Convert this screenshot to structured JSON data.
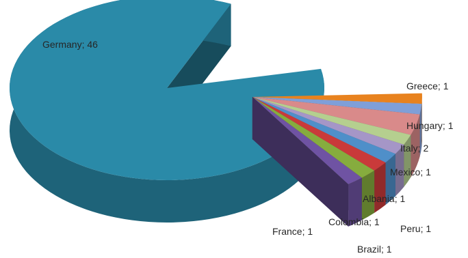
{
  "chart_data": {
    "type": "pie",
    "style": "3d-exploded",
    "title": "",
    "legend": "none",
    "data_label_format": "{name}; {value}",
    "slices": [
      {
        "name": "Germany",
        "value": 46,
        "color": "#2a8aa8"
      },
      {
        "name": "Greece",
        "value": 1,
        "color": "#e8821e"
      },
      {
        "name": "Hungary",
        "value": 1,
        "color": "#7f9fd8"
      },
      {
        "name": "Italy",
        "value": 2,
        "color": "#d98a8a"
      },
      {
        "name": "Mexico",
        "value": 1,
        "color": "#b5cf8f"
      },
      {
        "name": "Albania",
        "value": 1,
        "color": "#a596c7"
      },
      {
        "name": "Peru",
        "value": 1,
        "color": "#4f8fc9"
      },
      {
        "name": "Brazil",
        "value": 1,
        "color": "#c93a3a"
      },
      {
        "name": "Colombia",
        "value": 1,
        "color": "#86ac3e"
      },
      {
        "name": "France",
        "value": 1,
        "color": "#6f53a3"
      }
    ]
  }
}
